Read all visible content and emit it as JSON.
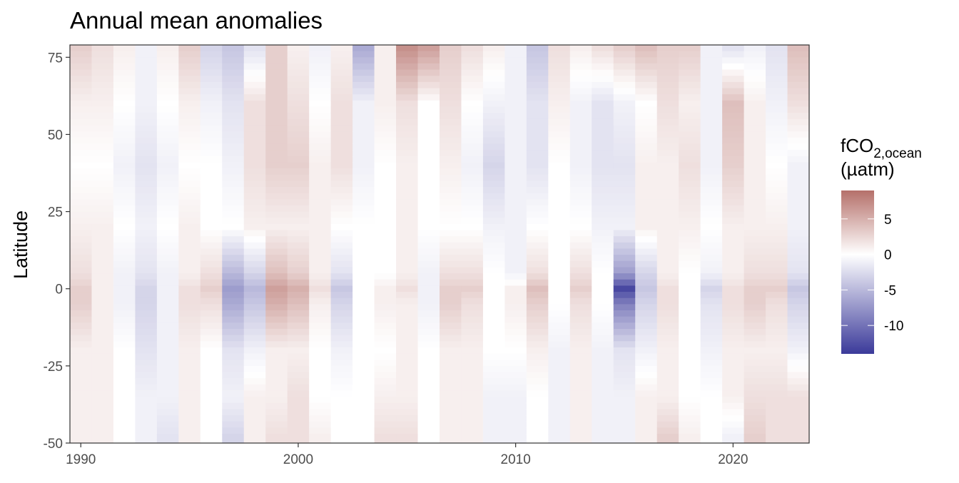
{
  "chart_data": {
    "type": "heatmap",
    "title": "Annual mean anomalies",
    "xlabel": "",
    "ylabel": "Latitude",
    "x_ticks": [
      "1990",
      "2000",
      "2010",
      "2020"
    ],
    "y_ticks": [
      "75",
      "50",
      "25",
      "0",
      "-25",
      "-50"
    ],
    "xlim": [
      1989.5,
      2023.5
    ],
    "ylim": [
      -50,
      79
    ],
    "years": [
      1990,
      1991,
      1992,
      1993,
      1994,
      1995,
      1996,
      1997,
      1998,
      1999,
      2000,
      2001,
      2002,
      2003,
      2004,
      2005,
      2006,
      2007,
      2008,
      2009,
      2010,
      2011,
      2012,
      2013,
      2014,
      2015,
      2016,
      2017,
      2018,
      2019,
      2020,
      2021,
      2022,
      2023
    ],
    "latitude_bands": [
      78,
      60,
      40,
      20,
      5,
      0,
      -5,
      -20,
      -35,
      -48
    ],
    "values": [
      [
        3,
        2,
        1,
        -1,
        1,
        3,
        -3,
        -4,
        -2,
        3,
        1,
        -1,
        1,
        -6,
        1,
        7,
        6,
        3,
        2,
        1,
        -1,
        -4,
        2,
        1,
        2,
        3,
        4,
        3,
        3,
        -1,
        -2,
        -1,
        -2,
        4
      ],
      [
        1,
        1,
        0,
        -1,
        0,
        1,
        -1,
        -2,
        2,
        3,
        2,
        0,
        2,
        -1,
        1,
        2,
        0,
        2,
        0,
        -1,
        -1,
        -2,
        1,
        -1,
        -2,
        -1,
        0,
        2,
        1,
        -1,
        4,
        1,
        -1,
        2
      ],
      [
        0,
        0,
        -1,
        -2,
        -1,
        0,
        0,
        -1,
        2,
        3,
        3,
        1,
        2,
        -1,
        0,
        1,
        0,
        1,
        -1,
        -3,
        -1,
        -2,
        0,
        -1,
        -2,
        -2,
        1,
        1,
        2,
        -1,
        3,
        1,
        0,
        -1
      ],
      [
        1,
        1,
        0,
        -1,
        0,
        1,
        0,
        0,
        1,
        1,
        1,
        1,
        0,
        0,
        0,
        1,
        0,
        0,
        0,
        -1,
        -1,
        0,
        0,
        0,
        -1,
        -1,
        1,
        1,
        1,
        0,
        1,
        1,
        1,
        -1
      ],
      [
        2,
        1,
        -1,
        -2,
        -1,
        1,
        2,
        -5,
        -3,
        4,
        3,
        1,
        -2,
        0,
        0,
        1,
        -1,
        2,
        2,
        0,
        -1,
        2,
        0,
        2,
        0,
        -7,
        -3,
        1,
        0,
        -1,
        1,
        2,
        2,
        -2
      ],
      [
        3,
        1,
        -1,
        -3,
        -1,
        2,
        3,
        -7,
        -5,
        6,
        5,
        2,
        -4,
        0,
        1,
        2,
        -1,
        3,
        3,
        0,
        1,
        4,
        0,
        3,
        0,
        -13,
        -4,
        2,
        0,
        -3,
        2,
        3,
        3,
        -4
      ],
      [
        3,
        1,
        -1,
        -3,
        -1,
        2,
        2,
        -6,
        -4,
        5,
        4,
        1,
        -3,
        0,
        1,
        1,
        -1,
        3,
        2,
        0,
        1,
        3,
        0,
        2,
        0,
        -9,
        -3,
        2,
        0,
        -2,
        2,
        3,
        2,
        -3
      ],
      [
        1,
        1,
        0,
        -2,
        -1,
        1,
        0,
        -2,
        -1,
        1,
        1,
        0,
        -1,
        0,
        0,
        1,
        0,
        1,
        1,
        0,
        0,
        1,
        -1,
        1,
        -1,
        -2,
        -1,
        1,
        0,
        -1,
        1,
        1,
        1,
        -1
      ],
      [
        1,
        1,
        0,
        -1,
        -1,
        1,
        0,
        -1,
        1,
        1,
        2,
        0,
        0,
        0,
        1,
        1,
        0,
        1,
        1,
        -1,
        -1,
        0,
        -1,
        1,
        -1,
        -1,
        1,
        1,
        0,
        0,
        1,
        2,
        2,
        2
      ],
      [
        1,
        1,
        0,
        -1,
        -2,
        1,
        0,
        -3,
        1,
        2,
        2,
        1,
        0,
        0,
        2,
        2,
        0,
        1,
        1,
        -1,
        -1,
        0,
        -1,
        1,
        -1,
        -1,
        1,
        3,
        1,
        0,
        -1,
        3,
        2,
        2
      ]
    ],
    "colorbar": {
      "title_main": "fCO",
      "title_sub": "2,ocean",
      "title_unit": "(µatm)",
      "ticks": [
        "5",
        "0",
        "-5",
        "-10"
      ],
      "tick_values": [
        5,
        0,
        -5,
        -10
      ],
      "range": [
        -14,
        9
      ],
      "low_color": "#3b3a9a",
      "mid_color": "#ffffff",
      "high_color": "#b5706a"
    },
    "grid": false,
    "legend_position": "right"
  }
}
